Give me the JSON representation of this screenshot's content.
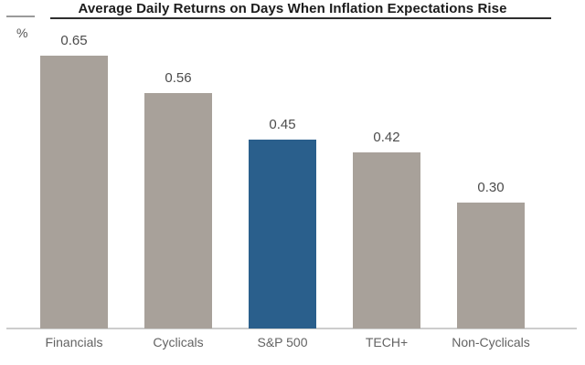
{
  "chart_data": {
    "type": "bar",
    "title": "Average Daily Returns on Days When Inflation Expectations Rise",
    "ylabel": "%",
    "categories": [
      "Financials",
      "Cyclicals",
      "S&P 500",
      "TECH+",
      "Non-Cyclicals"
    ],
    "values": [
      0.65,
      0.56,
      0.45,
      0.42,
      0.3
    ],
    "value_labels": [
      "0.65",
      "0.56",
      "0.45",
      "0.42",
      "0.30"
    ],
    "highlight_index": 2,
    "bar_color": "#a8a19a",
    "highlight_color": "#2a5f8c",
    "ylim": [
      0,
      0.78
    ],
    "grid": false,
    "legend": "none",
    "data_labels_position": "above-bars"
  }
}
